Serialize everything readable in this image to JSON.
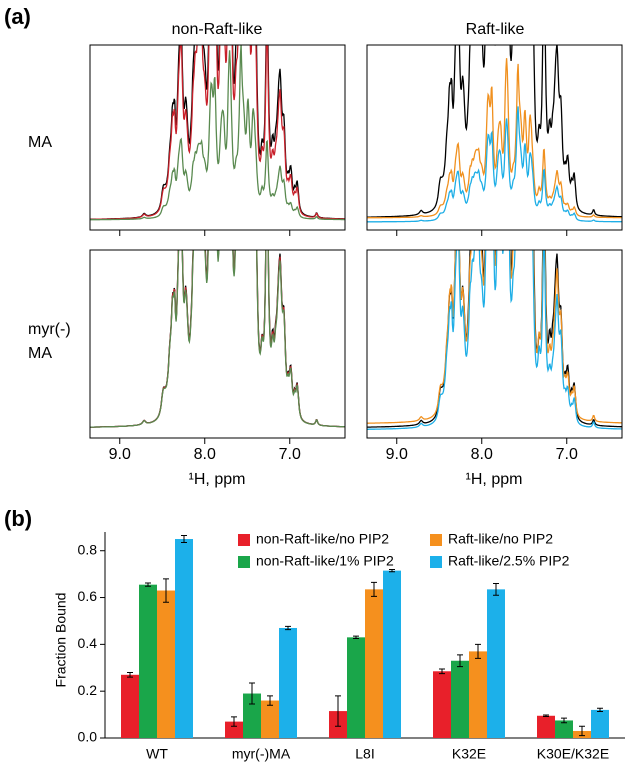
{
  "panel_a": {
    "label": "(a)",
    "columns": [
      "non-Raft-like",
      "Raft-like"
    ],
    "rows": [
      [
        "MA"
      ],
      [
        "myr(-)",
        "MA"
      ]
    ],
    "xlabel": "¹H, ppm",
    "xlim": [
      9.35,
      6.35
    ],
    "xticks": [
      {
        "value": 9,
        "label": "9.0"
      },
      {
        "value": 8,
        "label": "8.0"
      },
      {
        "value": 7,
        "label": "7.0"
      }
    ]
  },
  "chart_data": {
    "type": "bar",
    "label": "(b)",
    "ylabel": "Fraction Bound",
    "categories": [
      "WT",
      "myr(-)MA",
      "L8I",
      "K32E",
      "K30E/K32E"
    ],
    "series": [
      {
        "name": "non-Raft-like/no PIP2",
        "color": "#e8202a",
        "values": [
          0.27,
          0.07,
          0.115,
          0.285,
          0.095
        ],
        "errors": [
          0.01,
          0.02,
          0.065,
          0.01,
          0.003
        ]
      },
      {
        "name": "non-Raft-like/1% PIP2",
        "color": "#1aa64a",
        "values": [
          0.655,
          0.19,
          0.43,
          0.33,
          0.075
        ],
        "errors": [
          0.007,
          0.045,
          0.005,
          0.025,
          0.01
        ]
      },
      {
        "name": "Raft-like/no PIP2",
        "color": "#f5901e",
        "values": [
          0.63,
          0.16,
          0.635,
          0.37,
          0.03
        ],
        "errors": [
          0.05,
          0.02,
          0.03,
          0.03,
          0.02
        ]
      },
      {
        "name": "Raft-like/2.5% PIP2",
        "color": "#1cb0ea",
        "values": [
          0.85,
          0.47,
          0.715,
          0.635,
          0.12
        ],
        "errors": [
          0.015,
          0.007,
          0.005,
          0.025,
          0.007
        ]
      }
    ],
    "ylim": [
      0,
      0.88
    ],
    "yticks": [
      {
        "value": 0,
        "label": "0.0"
      },
      0.2,
      0.4,
      0.6,
      0.8
    ]
  }
}
